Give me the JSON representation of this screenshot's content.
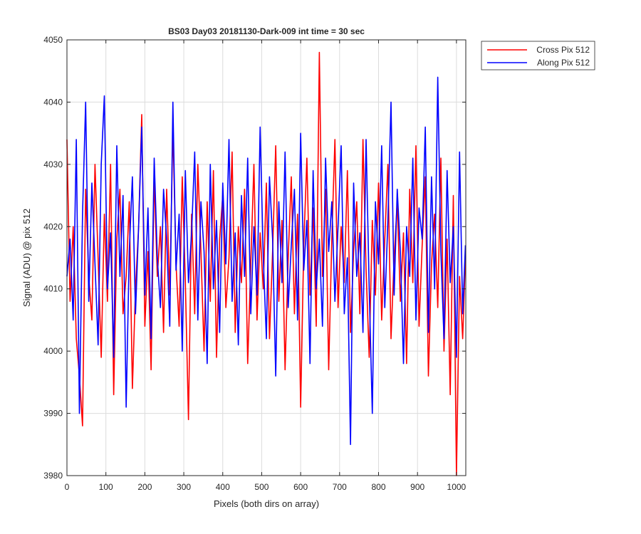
{
  "chart_data": {
    "type": "line",
    "title": "BS03 Day03 20181130-Dark-009 int time = 30 sec",
    "xlabel": "Pixels (both dirs on array)",
    "ylabel": "Signal (ADU) @ pix 512",
    "x": [
      0,
      8,
      16,
      24,
      32,
      40,
      48,
      56,
      64,
      72,
      80,
      88,
      96,
      104,
      112,
      120,
      128,
      136,
      144,
      152,
      160,
      168,
      176,
      184,
      192,
      200,
      208,
      216,
      224,
      232,
      240,
      248,
      256,
      264,
      272,
      280,
      288,
      296,
      304,
      312,
      320,
      328,
      336,
      344,
      352,
      360,
      368,
      376,
      384,
      392,
      400,
      408,
      416,
      424,
      432,
      440,
      448,
      456,
      464,
      472,
      480,
      488,
      496,
      504,
      512,
      520,
      528,
      536,
      544,
      552,
      560,
      568,
      576,
      584,
      592,
      600,
      608,
      616,
      624,
      632,
      640,
      648,
      656,
      664,
      672,
      680,
      688,
      696,
      704,
      712,
      720,
      728,
      736,
      744,
      752,
      760,
      768,
      776,
      784,
      792,
      800,
      808,
      816,
      824,
      832,
      840,
      848,
      856,
      864,
      872,
      880,
      888,
      896,
      904,
      912,
      920,
      928,
      936,
      944,
      952,
      960,
      968,
      976,
      984,
      992,
      1000,
      1008,
      1016,
      1023
    ],
    "series": [
      {
        "name": "Cross Pix 512",
        "color": "#ff0000",
        "values": [
          4034,
          4008,
          4020,
          4002,
          3996,
          3988,
          4026,
          4012,
          4005,
          4030,
          4015,
          3999,
          4022,
          4008,
          4030,
          3993,
          4018,
          4026,
          4006,
          4012,
          4024,
          3994,
          4010,
          4020,
          4038,
          4004,
          4016,
          3997,
          4028,
          4012,
          4020,
          4003,
          4026,
          4009,
          4036,
          4014,
          4004,
          4028,
          4011,
          3989,
          4022,
          4006,
          4030,
          4016,
          4000,
          4024,
          4008,
          4029,
          3999,
          4018,
          4025,
          4007,
          4015,
          4032,
          4003,
          4020,
          4011,
          4026,
          3998,
          4014,
          4030,
          4005,
          4019,
          4010,
          4027,
          4002,
          4016,
          4033,
          4008,
          4021,
          3997,
          4015,
          4028,
          4006,
          4022,
          3991,
          4017,
          4031,
          4009,
          4023,
          4004,
          4048,
          4012,
          4026,
          3997,
          4018,
          4034,
          4007,
          4020,
          4011,
          4029,
          4003,
          4016,
          4024,
          4006,
          4034,
          4013,
          3999,
          4021,
          4009,
          4027,
          4005,
          4018,
          4030,
          4002,
          4015,
          4024,
          4008,
          4019,
          3998,
          4026,
          4011,
          4033,
          4004,
          4017,
          4028,
          3996,
          4014,
          4022,
          4007,
          4031,
          4000,
          4018,
          3993,
          4025,
          3980,
          4012,
          4002,
          4015
        ]
      },
      {
        "name": "Along Pix 512",
        "color": "#0000ff",
        "values": [
          4012,
          4018,
          4005,
          4034,
          3990,
          4022,
          4040,
          4008,
          4027,
          4014,
          4001,
          4030,
          4041,
          4010,
          4019,
          3999,
          4033,
          4012,
          4025,
          3991,
          4016,
          4028,
          4006,
          4020,
          4036,
          4009,
          4023,
          4002,
          4031,
          4015,
          4007,
          4026,
          4018,
          4004,
          4040,
          4013,
          4022,
          4000,
          4029,
          4011,
          4019,
          4032,
          4005,
          4024,
          4016,
          3998,
          4030,
          4010,
          4021,
          4003,
          4027,
          4014,
          4034,
          4008,
          4019,
          4001,
          4025,
          4012,
          4031,
          4006,
          4020,
          4009,
          4036,
          4015,
          4002,
          4028,
          4018,
          3996,
          4024,
          4011,
          4032,
          4007,
          4017,
          4026,
          4005,
          4035,
          4013,
          4021,
          3998,
          4029,
          4010,
          4018,
          4004,
          4031,
          4016,
          4024,
          4008,
          4020,
          4033,
          4006,
          4015,
          3985,
          4027,
          4012,
          4019,
          4003,
          4034,
          4010,
          3990,
          4024,
          4014,
          4033,
          4007,
          4021,
          4040,
          4009,
          4026,
          4016,
          3998,
          4020,
          4012,
          4031,
          4005,
          4023,
          4018,
          4036,
          4003,
          4028,
          4010,
          4044,
          4016,
          4002,
          4029,
          4011,
          4020,
          3999,
          4032,
          4006,
          4017
        ]
      }
    ],
    "xlim": [
      0,
      1024
    ],
    "xticks": [
      0,
      100,
      200,
      300,
      400,
      500,
      600,
      700,
      800,
      900,
      1000
    ],
    "ylim": [
      3980,
      4050
    ],
    "yticks": [
      3980,
      3990,
      4000,
      4010,
      4020,
      4030,
      4040,
      4050
    ],
    "grid": true,
    "legend": "outside-northeast"
  }
}
